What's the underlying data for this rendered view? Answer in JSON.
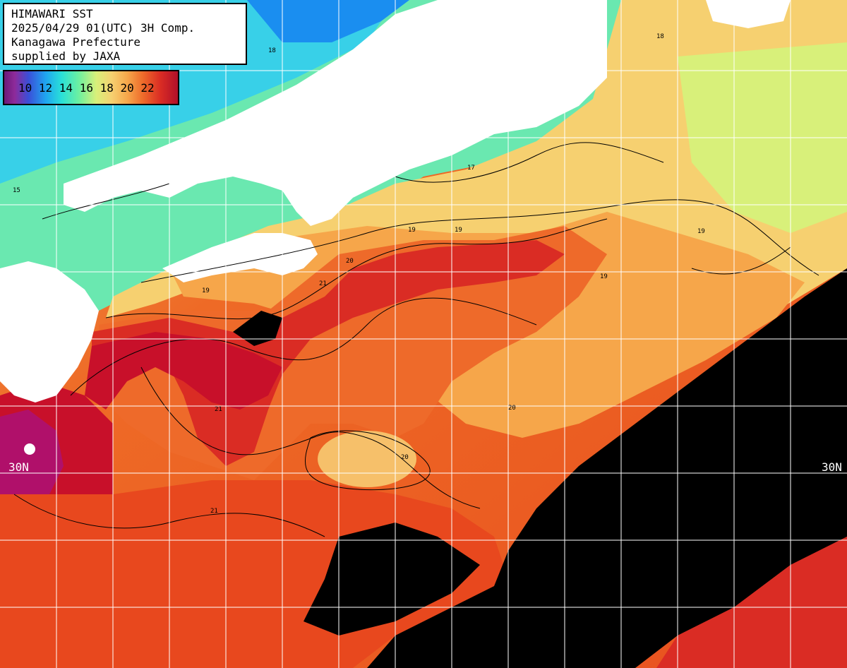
{
  "header": {
    "line1": "HIMAWARI SST",
    "line2": "2025/04/29 01(UTC) 3H Comp.",
    "line3": "Kanagawa Prefecture",
    "line4": "supplied by JAXA"
  },
  "legend": {
    "labels": "10 12 14 16 18 20 22",
    "unit_note": ""
  },
  "grid": {
    "lat_label_left": "30N",
    "lat_label_right": "30N"
  },
  "contour_labels": [
    "19",
    "19",
    "20",
    "21",
    "21",
    "20",
    "19",
    "18",
    "17",
    "15",
    "19",
    "20",
    "21",
    "18",
    "19"
  ],
  "colors": {
    "land": "#ffffff",
    "cloud_no_data": "#000000",
    "grid_line": "#ffffff",
    "warm_core": "#c8102a",
    "ocean_warm": "#ee5a20",
    "ocean_mid": "#f4a040",
    "coastal_cool": "#6ae8a8"
  }
}
